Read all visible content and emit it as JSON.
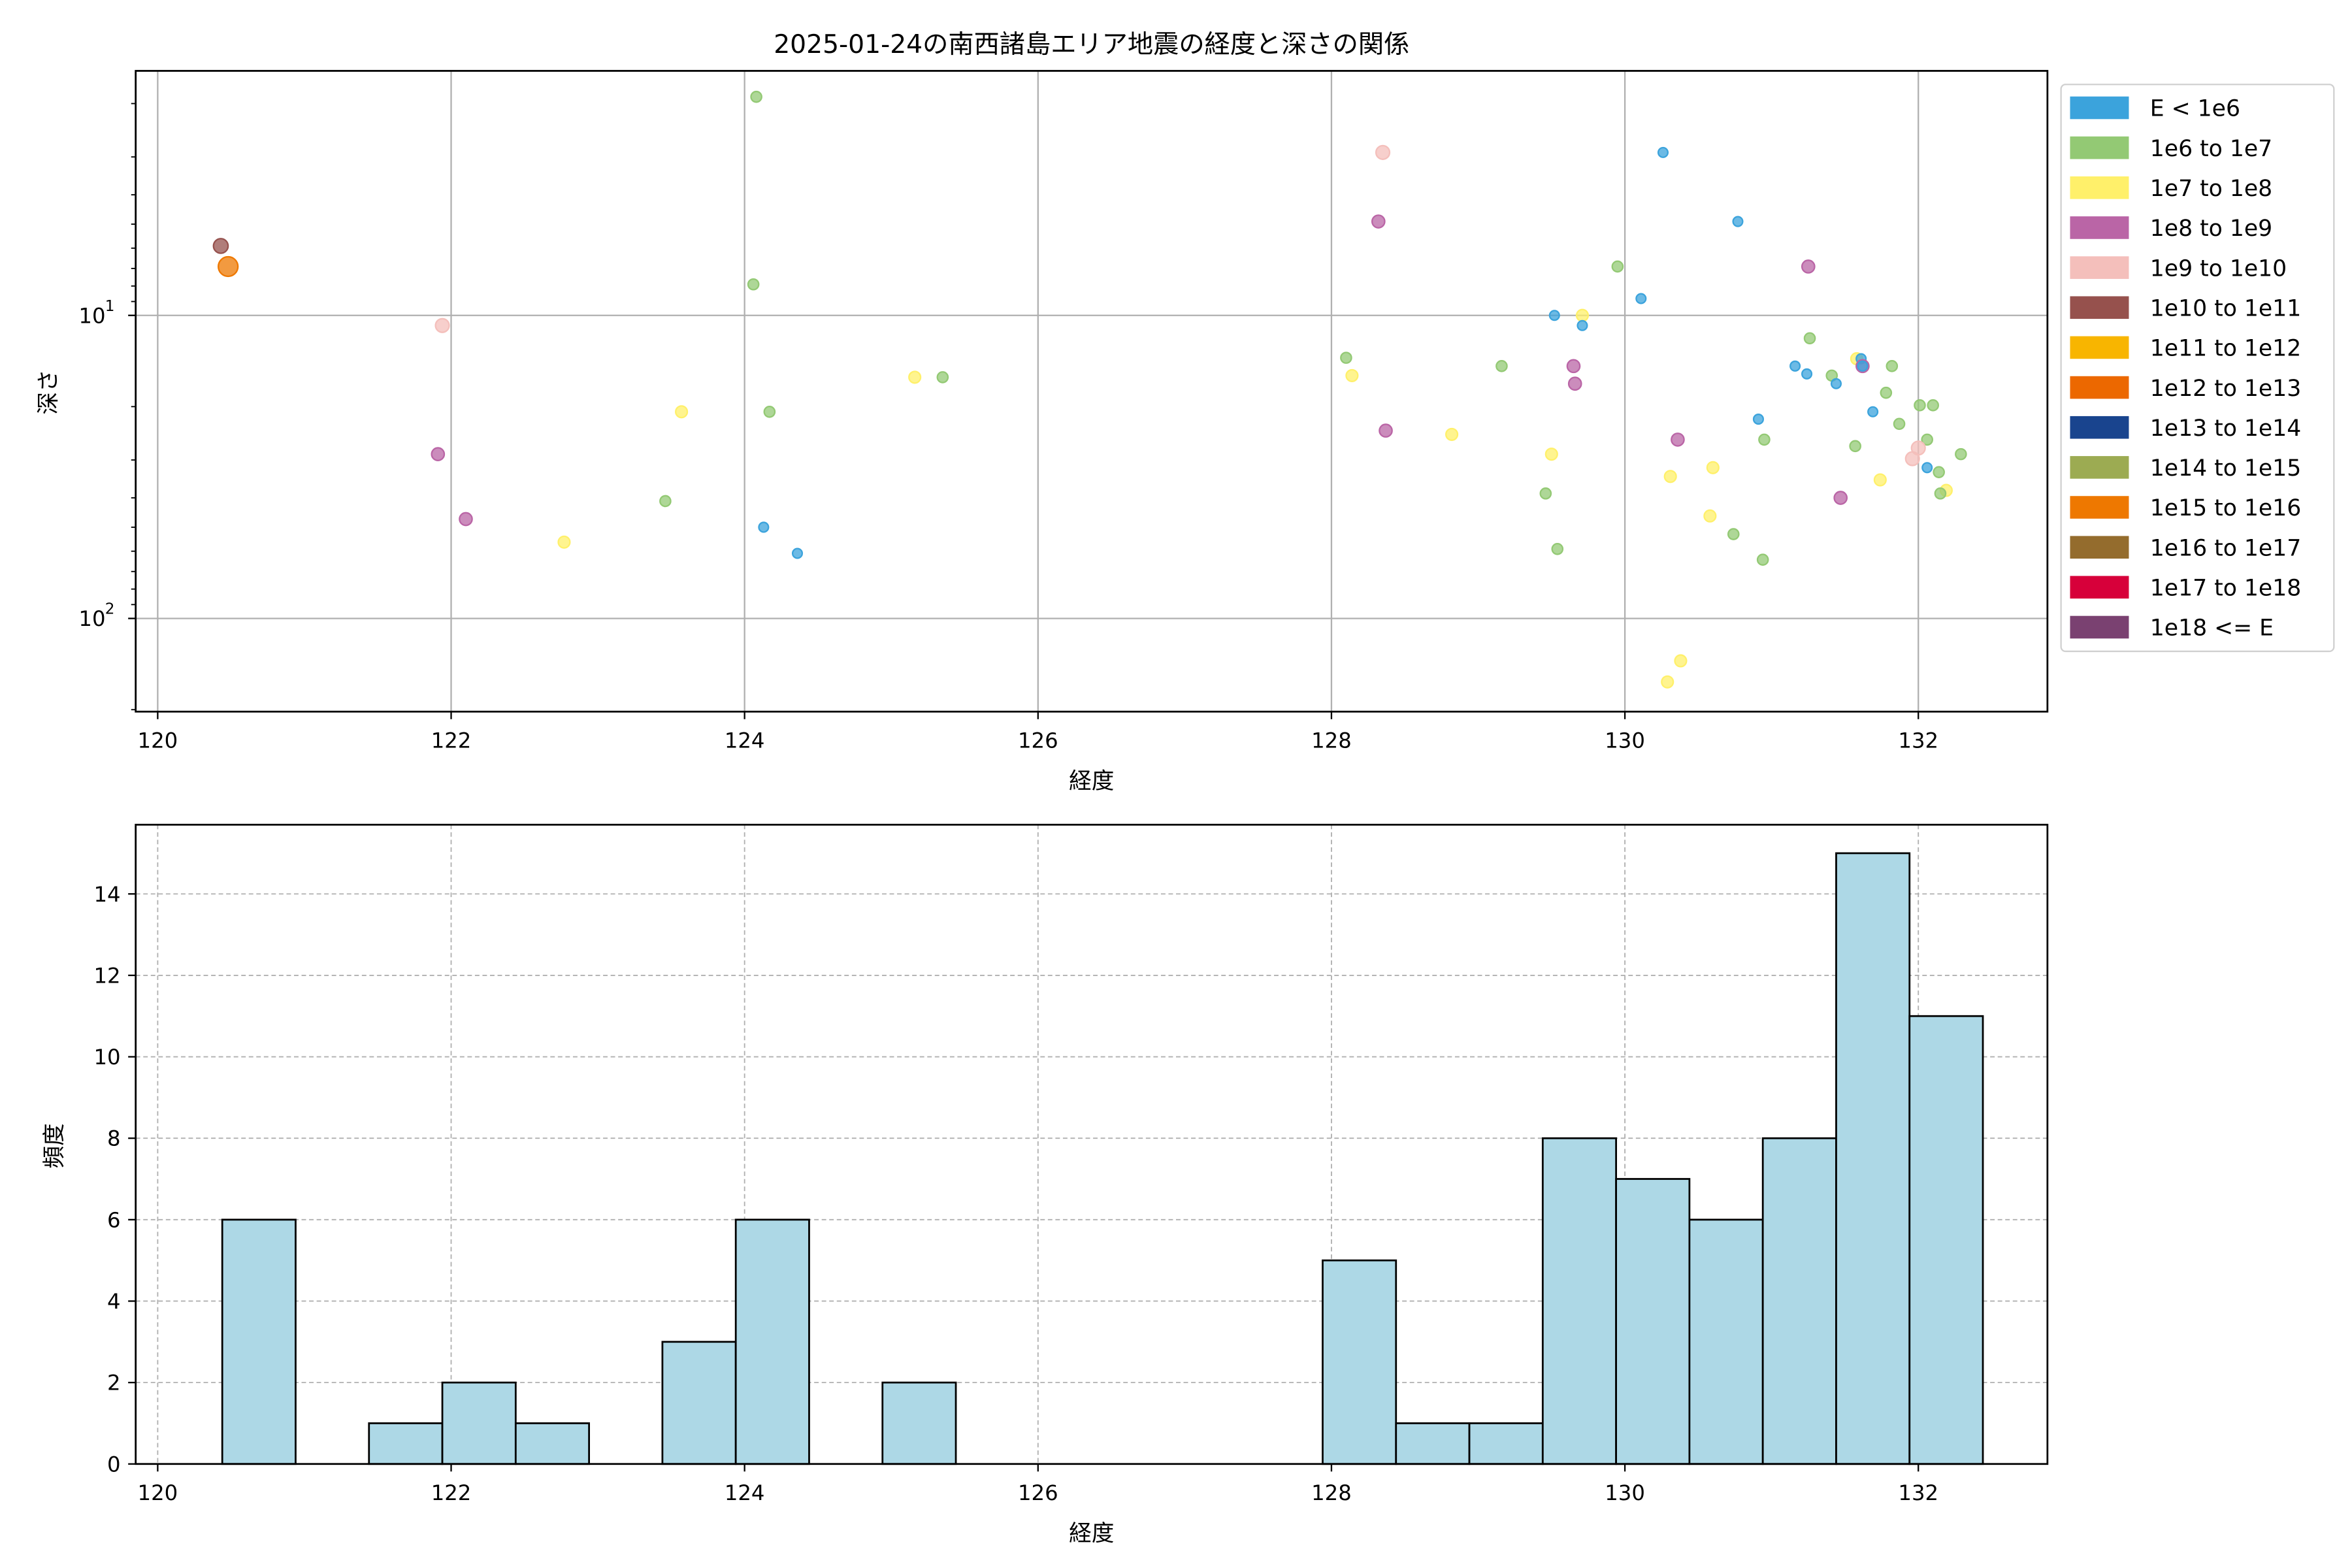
{
  "chart_data": [
    {
      "type": "scatter",
      "title": "2025-01-24の南西諸島エリア地震の経度と深さの関係",
      "xlabel": "経度",
      "ylabel": "深さ",
      "xlim": [
        119.85,
        132.88
      ],
      "ylim": [
        1.56,
        203
      ],
      "yscale": "log",
      "yaxis_inverted": true,
      "grid": true,
      "xticks": [
        "120",
        "122",
        "124",
        "126",
        "128",
        "130",
        "132"
      ],
      "yticks": [
        {
          "value": 10,
          "label": "10",
          "exp": "1"
        },
        {
          "value": 100,
          "label": "10",
          "exp": "2"
        }
      ],
      "legend_position": "outside-right",
      "legend": [
        {
          "label": "E < 1e6",
          "color": "#3ba3dc"
        },
        {
          "label": "1e6 to 1e7",
          "color": "#93c974"
        },
        {
          "label": "1e7 to 1e8",
          "color": "#fff06a"
        },
        {
          "label": "1e8 to 1e9",
          "color": "#ba65a6"
        },
        {
          "label": "1e9 to 1e10",
          "color": "#f4bfbb"
        },
        {
          "label": "1e10 to 1e11",
          "color": "#96514d"
        },
        {
          "label": "1e11 to 1e12",
          "color": "#f8b500"
        },
        {
          "label": "1e12 to 1e13",
          "color": "#ec6800"
        },
        {
          "label": "1e13 to 1e14",
          "color": "#19448e"
        },
        {
          "label": "1e14 to 1e15",
          "color": "#9cab52"
        },
        {
          "label": "1e15 to 1e16",
          "color": "#ee7800"
        },
        {
          "label": "1e16 to 1e17",
          "color": "#946c2d"
        },
        {
          "label": "1e17 to 1e18",
          "color": "#d7003a"
        },
        {
          "label": "1e18 <= E",
          "color": "#7a4171"
        }
      ],
      "points_format": [
        "longitude",
        "depth",
        "energy_class_index"
      ],
      "points": [
        [
          120.43,
          5.9,
          5
        ],
        [
          120.48,
          6.9,
          10
        ],
        [
          124.08,
          1.9,
          1
        ],
        [
          124.06,
          7.9,
          1
        ],
        [
          121.94,
          10.8,
          4
        ],
        [
          125.16,
          16,
          2
        ],
        [
          125.35,
          16,
          1
        ],
        [
          123.57,
          20.8,
          2
        ],
        [
          124.17,
          20.8,
          1
        ],
        [
          121.91,
          28.7,
          3
        ],
        [
          123.46,
          41,
          1
        ],
        [
          122.1,
          47,
          3
        ],
        [
          122.77,
          56,
          2
        ],
        [
          124.13,
          50,
          0
        ],
        [
          124.36,
          61,
          0
        ],
        [
          128.35,
          2.9,
          4
        ],
        [
          130.26,
          2.9,
          0
        ],
        [
          128.32,
          4.9,
          3
        ],
        [
          130.77,
          4.9,
          0
        ],
        [
          129.95,
          6.9,
          1
        ],
        [
          131.25,
          6.9,
          3
        ],
        [
          130.11,
          8.8,
          0
        ],
        [
          129.52,
          10,
          0
        ],
        [
          129.71,
          10,
          2
        ],
        [
          129.71,
          10.8,
          0
        ],
        [
          128.1,
          13.8,
          1
        ],
        [
          128.14,
          15.8,
          2
        ],
        [
          129.16,
          14.7,
          1
        ],
        [
          129.65,
          14.7,
          3
        ],
        [
          129.66,
          16.8,
          3
        ],
        [
          131.26,
          11.9,
          1
        ],
        [
          131.58,
          13.9,
          2
        ],
        [
          131.61,
          13.9,
          0
        ],
        [
          131.62,
          14.7,
          3
        ],
        [
          131.62,
          14.7,
          0
        ],
        [
          131.16,
          14.7,
          0
        ],
        [
          131.24,
          15.6,
          0
        ],
        [
          131.41,
          15.8,
          1
        ],
        [
          131.44,
          16.8,
          0
        ],
        [
          131.82,
          14.7,
          1
        ],
        [
          131.78,
          18,
          1
        ],
        [
          131.69,
          20.8,
          0
        ],
        [
          132.01,
          19.8,
          1
        ],
        [
          132.1,
          19.8,
          1
        ],
        [
          130.91,
          22,
          0
        ],
        [
          131.87,
          22.8,
          1
        ],
        [
          128.37,
          24,
          3
        ],
        [
          128.82,
          24.7,
          2
        ],
        [
          130.36,
          25.7,
          3
        ],
        [
          130.95,
          25.7,
          1
        ],
        [
          132.06,
          25.7,
          1
        ],
        [
          132.0,
          27.4,
          4
        ],
        [
          131.57,
          27,
          1
        ],
        [
          129.5,
          28.7,
          2
        ],
        [
          132.29,
          28.7,
          1
        ],
        [
          131.96,
          29.7,
          4
        ],
        [
          132.06,
          31.8,
          0
        ],
        [
          132.14,
          32.9,
          1
        ],
        [
          130.31,
          34,
          2
        ],
        [
          130.6,
          31.8,
          2
        ],
        [
          131.74,
          34.9,
          2
        ],
        [
          132.19,
          37.8,
          2
        ],
        [
          129.46,
          38.7,
          1
        ],
        [
          132.15,
          38.7,
          1
        ],
        [
          131.47,
          40,
          3
        ],
        [
          130.58,
          45.9,
          2
        ],
        [
          130.74,
          52.7,
          1
        ],
        [
          129.54,
          59,
          1
        ],
        [
          130.94,
          64,
          1
        ],
        [
          130.38,
          138,
          2
        ],
        [
          130.29,
          162,
          2
        ]
      ]
    },
    {
      "type": "bar",
      "subtype": "histogram",
      "xlabel": "経度",
      "ylabel": "頻度",
      "xlim": [
        119.85,
        132.88
      ],
      "ylim": [
        0,
        15.7
      ],
      "grid": true,
      "grid_style": "dashed",
      "bar_color": "#add8e6",
      "xticks": [
        "120",
        "122",
        "124",
        "126",
        "128",
        "130",
        "132"
      ],
      "yticks": [
        "0",
        "2",
        "4",
        "6",
        "8",
        "10",
        "12",
        "14"
      ],
      "bin_start": 120.44,
      "bin_width": 0.5,
      "values": [
        6,
        0,
        1,
        2,
        1,
        0,
        3,
        6,
        0,
        2,
        0,
        0,
        0,
        0,
        0,
        5,
        1,
        1,
        8,
        7,
        6,
        8,
        15,
        11
      ]
    }
  ]
}
